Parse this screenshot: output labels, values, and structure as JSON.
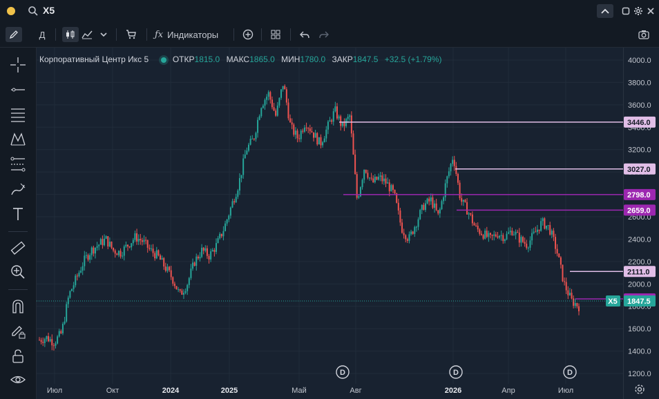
{
  "topbar": {
    "symbol": "X5"
  },
  "toolbar": {
    "timeframe": "Д",
    "indicators": "Индикаторы"
  },
  "legend": {
    "name": "Корпоративный Центр Икс 5",
    "open_label": "ОТКР",
    "open": "1815.0",
    "high_label": "МАКС",
    "high": "1865.0",
    "low_label": "МИН",
    "low": "1780.0",
    "close_label": "ЗАКР",
    "close": "1847.5",
    "change": "+32.5 (+1.79%)"
  },
  "chart_data": {
    "type": "candlestick",
    "y_ticks": [
      "4000.0",
      "3800.0",
      "3600.0",
      "3400.0",
      "3200.0",
      "3000.0",
      "2800.0",
      "2600.0",
      "2400.0",
      "2200.0",
      "2000.0",
      "1800.0",
      "1600.0",
      "1400.0",
      "1200.0"
    ],
    "ylim": [
      1200,
      4000
    ],
    "x_ticks": [
      "Июл",
      "Окт",
      "2024",
      "2025",
      "Май",
      "Авг",
      "2026",
      "Апр",
      "Июл"
    ],
    "x_ticks_bold": [
      "2024",
      "2025",
      "2026"
    ],
    "dividend_marker": "D",
    "price_levels": [
      {
        "value": "3446.0",
        "price": 3446,
        "color": "#e1bee7",
        "style": "light"
      },
      {
        "value": "3027.0",
        "price": 3027,
        "color": "#e1bee7",
        "style": "light"
      },
      {
        "value": "2798.0",
        "price": 2798,
        "color": "#9c27b0",
        "style": "dark"
      },
      {
        "value": "2659.0",
        "price": 2659,
        "color": "#9c27b0",
        "style": "dark"
      },
      {
        "value": "2111.0",
        "price": 2111,
        "color": "#e1bee7",
        "style": "light"
      },
      {
        "value": "1866.0",
        "price": 1866,
        "color": "#9c27b0",
        "style": "dark"
      }
    ],
    "last_price": {
      "symbol": "X5",
      "value": "1847.5",
      "price": 1847.5,
      "color": "#26a69a"
    },
    "up_color": "#26a69a",
    "down_color": "#ef5350",
    "series": [
      1500,
      1520,
      1480,
      1560,
      1900,
      2050,
      2200,
      2300,
      2350,
      2400,
      2300,
      2280,
      2350,
      2420,
      2380,
      2300,
      2250,
      2150,
      2050,
      1900,
      2000,
      2200,
      2300,
      2250,
      2350,
      2500,
      2700,
      2900,
      3200,
      3300,
      3600,
      3700,
      3500,
      3800,
      3400,
      3300,
      3450,
      3350,
      3250,
      3400,
      3550,
      3400,
      3500,
      2750,
      3050,
      2900,
      2950,
      2900,
      2800,
      2500,
      2400,
      2550,
      2700,
      2750,
      2600,
      2900,
      3150,
      2750,
      2650,
      2500,
      2450,
      2400,
      2450,
      2420,
      2480,
      2400,
      2350,
      2450,
      2550,
      2500,
      2300,
      2000,
      1850,
      1800
    ]
  }
}
